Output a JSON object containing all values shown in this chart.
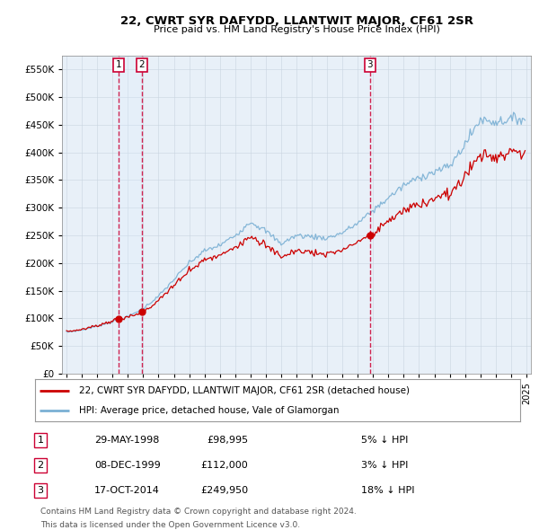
{
  "title": "22, CWRT SYR DAFYDD, LLANTWIT MAJOR, CF61 2SR",
  "subtitle": "Price paid vs. HM Land Registry's House Price Index (HPI)",
  "legend_line1": "22, CWRT SYR DAFYDD, LLANTWIT MAJOR, CF61 2SR (detached house)",
  "legend_line2": "HPI: Average price, detached house, Vale of Glamorgan",
  "footer1": "Contains HM Land Registry data © Crown copyright and database right 2024.",
  "footer2": "This data is licensed under the Open Government Licence v3.0.",
  "transactions": [
    {
      "num": 1,
      "date": "29-MAY-1998",
      "price": 98995,
      "pct": "5%",
      "dir": "↓"
    },
    {
      "num": 2,
      "date": "08-DEC-1999",
      "price": 112000,
      "pct": "3%",
      "dir": "↓"
    },
    {
      "num": 3,
      "date": "17-OCT-2014",
      "price": 249950,
      "pct": "18%",
      "dir": "↓"
    }
  ],
  "transaction_dates_decimal": [
    1998.41,
    1999.92,
    2014.79
  ],
  "transaction_prices": [
    98995,
    112000,
    249950
  ],
  "vline_color": "#cc0033",
  "price_line_color": "#cc0000",
  "hpi_line_color": "#7ab0d4",
  "shade_color": "#ddeeff",
  "background_color": "#e8f0f8",
  "grid_color": "#c8d4e0",
  "ylim": [
    0,
    575000
  ],
  "yticks": [
    0,
    50000,
    100000,
    150000,
    200000,
    250000,
    300000,
    350000,
    400000,
    450000,
    500000,
    550000
  ],
  "xlim_start": 1994.7,
  "xlim_end": 2025.3,
  "xticks": [
    1995,
    1996,
    1997,
    1998,
    1999,
    2000,
    2001,
    2002,
    2003,
    2004,
    2005,
    2006,
    2007,
    2008,
    2009,
    2010,
    2011,
    2012,
    2013,
    2014,
    2015,
    2016,
    2017,
    2018,
    2019,
    2020,
    2021,
    2022,
    2023,
    2024,
    2025
  ],
  "hpi_anchors": {
    "1995.0": 75000,
    "1996.0": 79000,
    "1997.0": 86000,
    "1998.0": 94000,
    "1999.0": 103000,
    "2000.0": 118000,
    "2001.0": 140000,
    "2002.0": 170000,
    "2003.0": 200000,
    "2004.0": 222000,
    "2005.0": 232000,
    "2006.0": 250000,
    "2007.0": 275000,
    "2008.0": 258000,
    "2009.0": 235000,
    "2010.0": 250000,
    "2011.0": 248000,
    "2012.0": 245000,
    "2013.0": 255000,
    "2014.0": 272000,
    "2015.0": 295000,
    "2016.0": 318000,
    "2017.0": 340000,
    "2018.0": 355000,
    "2019.0": 365000,
    "2020.0": 375000,
    "2021.0": 415000,
    "2022.0": 460000,
    "2023.0": 455000,
    "2024.0": 460000,
    "2025.0": 462000
  }
}
